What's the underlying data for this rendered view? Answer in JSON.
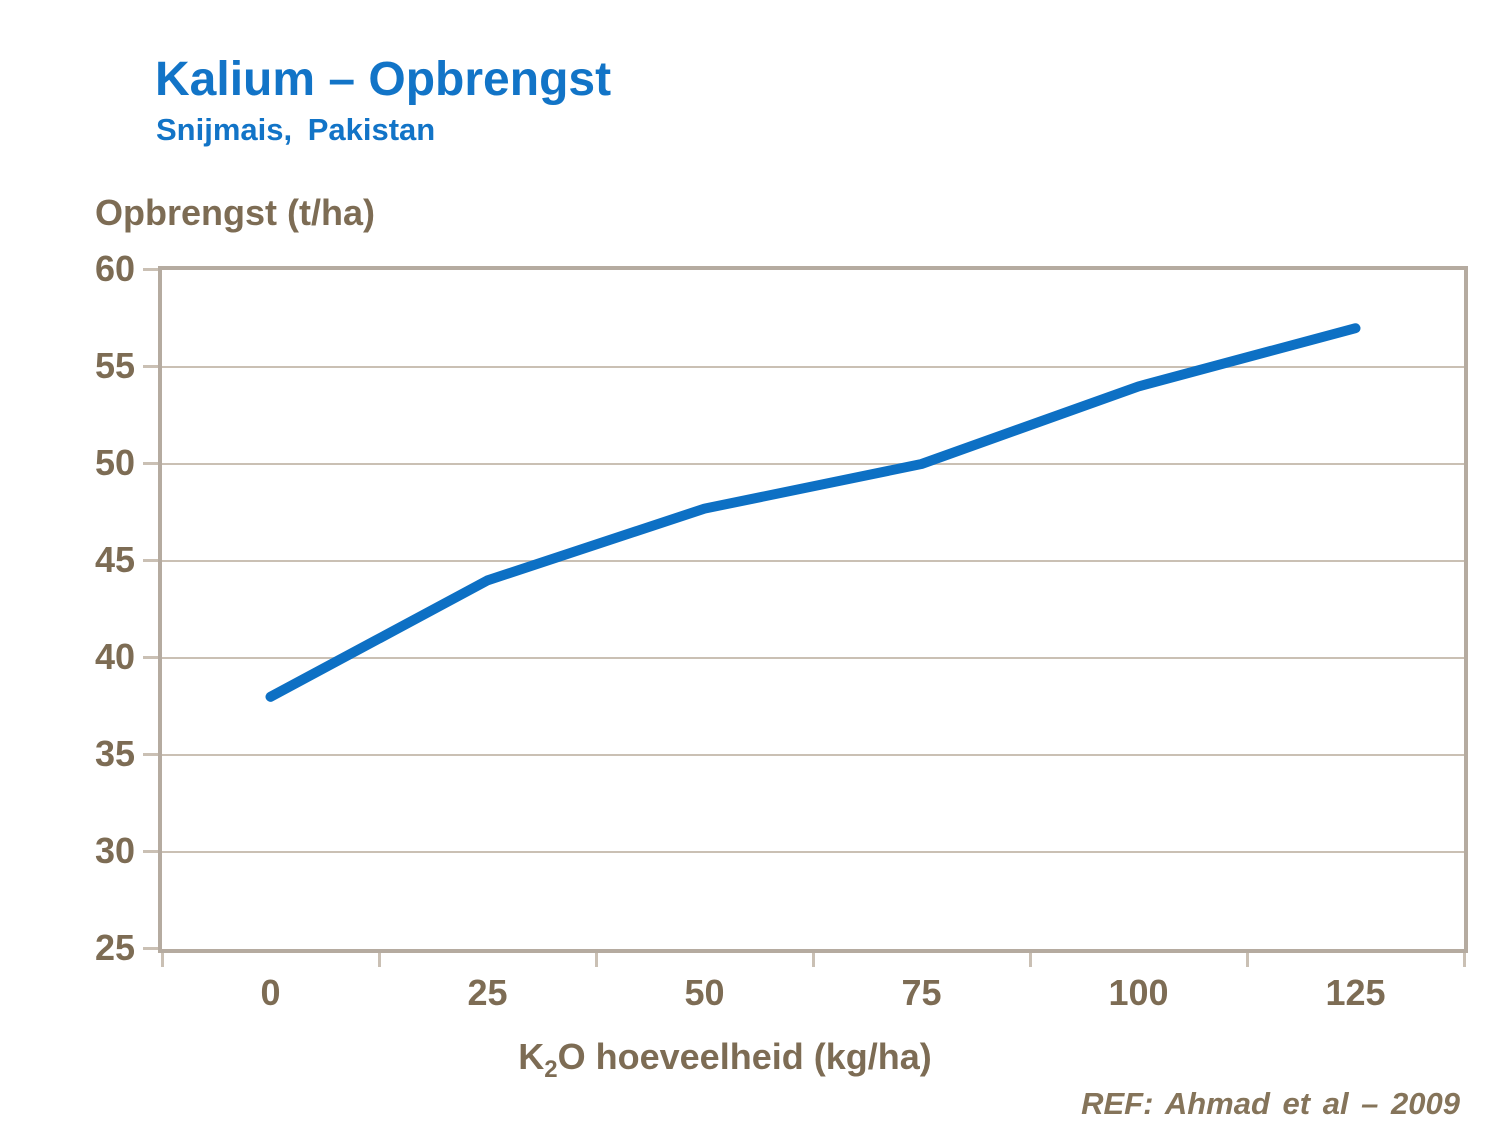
{
  "header": {
    "title": "Kalium – Opbrengst",
    "subtitle": "Snijmais, Pakistan"
  },
  "chart_data": {
    "type": "line",
    "categories": [
      0,
      25,
      50,
      75,
      100,
      125
    ],
    "series": [
      {
        "name": "Opbrengst",
        "values": [
          38,
          44,
          47.7,
          50,
          54,
          57
        ]
      }
    ],
    "title": "Kalium – Opbrengst",
    "subtitle": "Snijmais, Pakistan",
    "ylabel": "Opbrengst (t/ha)",
    "xlabel": "K2O hoeveelheid (kg/ha)",
    "xlabel_parts": {
      "base": "K",
      "sub": "2",
      "rest": "O hoeveelheid (kg/ha)"
    },
    "ylim": [
      25,
      60
    ],
    "yticks": [
      25,
      30,
      35,
      40,
      45,
      50,
      55,
      60
    ],
    "grid": true,
    "legend_position": "none",
    "line_width": 10
  },
  "footer": {
    "reference": "REF:  Ahmad et al – 2009"
  },
  "colors": {
    "heading_blue": "#1274c7",
    "line_blue": "#0d70c4",
    "axis_text_brown": "#7d6c54",
    "frame_taupe": "#b5aba0",
    "gridline_taupe": "#cac0b4",
    "ref_brown": "#85745a"
  }
}
